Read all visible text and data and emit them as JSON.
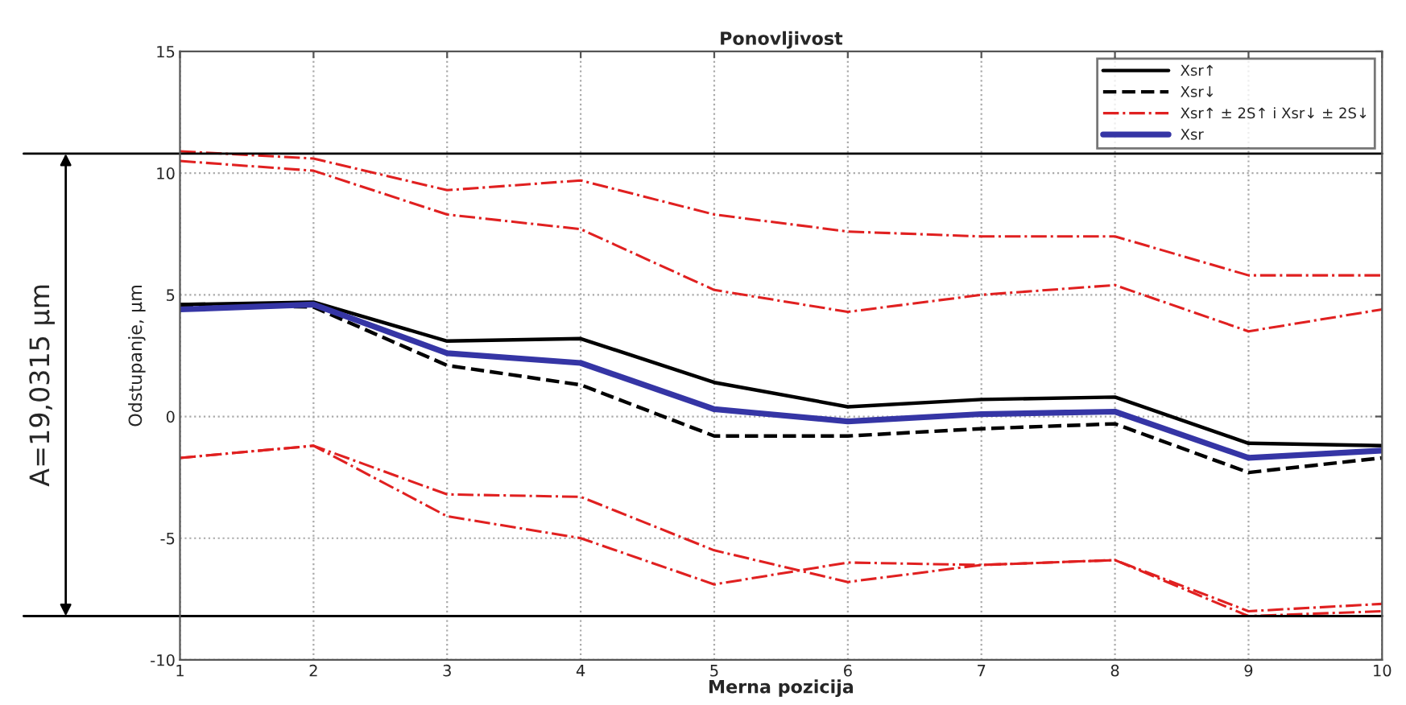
{
  "chart_data": {
    "type": "line",
    "title": "Ponovljivost",
    "xlabel": "Merna pozicija",
    "ylabel": "Odstupanje, µm",
    "x": [
      1,
      2,
      3,
      4,
      5,
      6,
      7,
      8,
      9,
      10
    ],
    "series": [
      {
        "name": "Xsr↑",
        "color": "#000000",
        "line_style": "solid",
        "values": [
          4.6,
          4.7,
          3.1,
          3.2,
          1.4,
          0.4,
          0.7,
          0.8,
          -1.1,
          -1.2
        ]
      },
      {
        "name": "Xsr↓",
        "color": "#000000",
        "line_style": "dashed",
        "values": [
          4.6,
          4.5,
          2.1,
          1.3,
          -0.8,
          -0.8,
          -0.5,
          -0.3,
          -2.3,
          -1.7
        ]
      },
      {
        "name": "Xsr↑ ± 2S↑ i Xsr↓ ± 2S↓",
        "color": "#e02020",
        "line_style": "dashdot",
        "values": [
          10.9,
          10.6,
          9.3,
          9.7,
          8.3,
          7.6,
          7.4,
          7.4,
          5.8,
          5.8
        ]
      },
      {
        "color": "#e02020",
        "line_style": "dashdot",
        "values": [
          10.5,
          10.1,
          8.3,
          7.7,
          5.2,
          4.3,
          5.0,
          5.4,
          3.5,
          4.4
        ]
      },
      {
        "color": "#e02020",
        "line_style": "dashdot",
        "values": [
          -1.7,
          -1.2,
          -3.2,
          -3.3,
          -5.5,
          -6.8,
          -6.1,
          -5.9,
          -8.0,
          -7.7
        ]
      },
      {
        "color": "#e02020",
        "line_style": "dashdot",
        "values": [
          -1.7,
          -1.2,
          -4.1,
          -5.0,
          -6.9,
          -6.0,
          -6.1,
          -5.9,
          -8.2,
          -8.0
        ]
      },
      {
        "name": "Xsr",
        "color": "#3535a5",
        "line_style": "solid",
        "values": [
          4.4,
          4.6,
          2.6,
          2.2,
          0.3,
          -0.2,
          0.1,
          0.2,
          -1.7,
          -1.4
        ]
      }
    ],
    "xlim": [
      1,
      10
    ],
    "xticks": [
      1,
      2,
      3,
      4,
      5,
      6,
      7,
      8,
      9,
      10
    ],
    "ylim": [
      -10,
      15
    ],
    "yticks": [
      -10,
      -5,
      0,
      5,
      10,
      15
    ],
    "grid": true,
    "legend": "top right",
    "marker": "none",
    "ref_lines": [
      {
        "axis": "y",
        "value": 10.8,
        "color": "#000000"
      },
      {
        "axis": "y",
        "value": -8.2,
        "color": "#000000"
      }
    ],
    "annotations": [
      "A=19,0315 µm"
    ]
  }
}
